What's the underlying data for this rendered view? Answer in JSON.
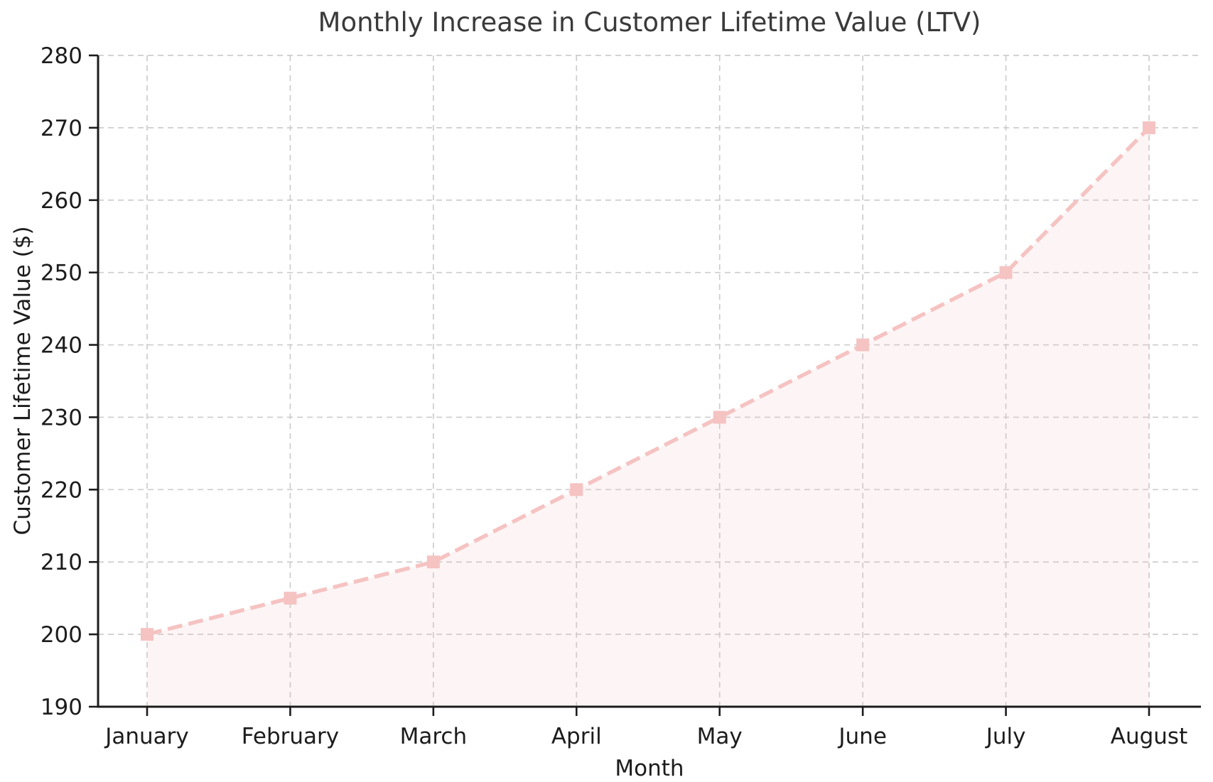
{
  "figure": {
    "title": "Monthly Increase in Customer Lifetime Value (LTV)",
    "xlabel": "Month",
    "ylabel": "Customer Lifetime Value ($)"
  },
  "chart_data": {
    "type": "line",
    "title": "Monthly Increase in Customer Lifetime Value (LTV)",
    "xlabel": "Month",
    "ylabel": "Customer Lifetime Value ($)",
    "categories": [
      "January",
      "February",
      "March",
      "April",
      "May",
      "June",
      "July",
      "August"
    ],
    "series": [
      {
        "name": "Customer Lifetime Value",
        "values": [
          200,
          205,
          210,
          220,
          230,
          240,
          250,
          270
        ]
      }
    ],
    "ylim": [
      190,
      280
    ],
    "ytick_step": 10,
    "yticks": [
      190,
      200,
      210,
      220,
      230,
      240,
      250,
      260,
      270,
      280
    ],
    "grid": true,
    "grid_style": "dashed",
    "legend": false,
    "line_style": "dashed",
    "marker": "square",
    "area_fill": true,
    "colors": {
      "line": "#f5c3c2",
      "marker": "#f5c3c2",
      "area": "#f5c3c2",
      "area_opacity": 0.16,
      "grid": "#cdcdcd",
      "axis": "#1c1c1c",
      "title": "#3a3a3a",
      "background": "#ffffff"
    }
  }
}
